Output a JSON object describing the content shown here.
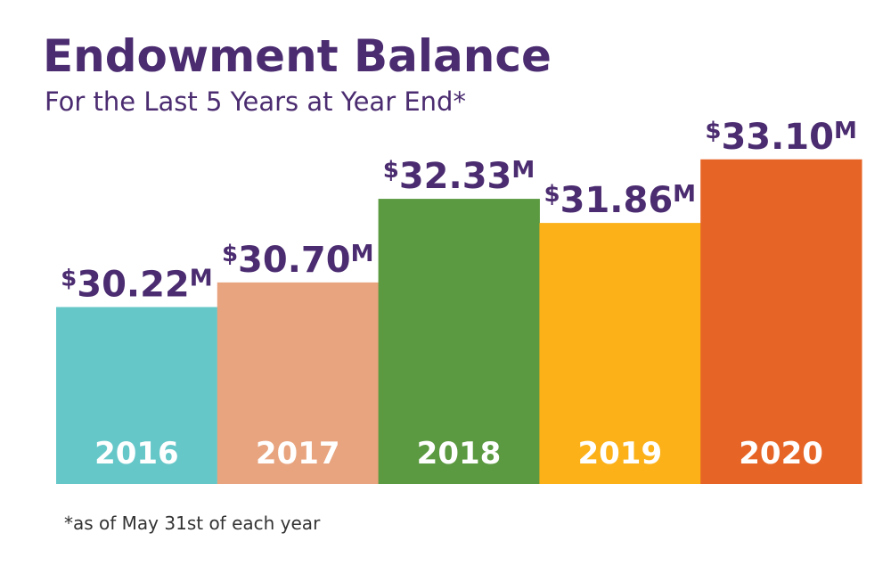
{
  "chart_data": {
    "type": "bar",
    "title": "Endowment Balance",
    "subtitle": "For the Last 5 Years at Year End*",
    "footnote": "*as of May 31st of each year",
    "categories": [
      "2016",
      "2017",
      "2018",
      "2019",
      "2020"
    ],
    "values": [
      30.22,
      30.7,
      32.33,
      31.86,
      33.1
    ],
    "value_labels": [
      "$30.22M",
      "$30.70M",
      "$32.33M",
      "$31.86M",
      "$33.10M"
    ],
    "colors": [
      "#66c7c9",
      "#e8a47f",
      "#5b9a40",
      "#fbb117",
      "#e66526"
    ],
    "ylim": [
      26.77,
      34.0
    ]
  }
}
